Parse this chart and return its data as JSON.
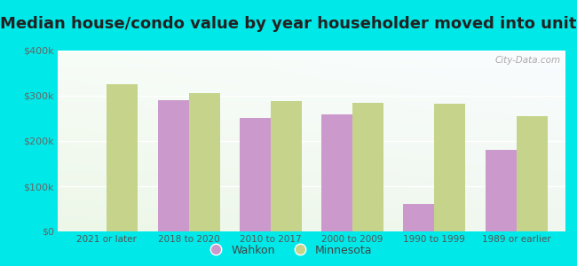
{
  "title": "Median house/condo value by year householder moved into unit",
  "categories": [
    "2021 or later",
    "2018 to 2020",
    "2010 to 2017",
    "2000 to 2009",
    "1990 to 1999",
    "1989 or earlier"
  ],
  "wahkon": [
    null,
    290000,
    250000,
    258000,
    60000,
    180000
  ],
  "minnesota": [
    325000,
    305000,
    288000,
    285000,
    282000,
    255000
  ],
  "wahkon_color": "#cc99cc",
  "minnesota_color": "#c5d48a",
  "background_outer": "#00e8e8",
  "ylim": [
    0,
    400000
  ],
  "yticks": [
    0,
    100000,
    200000,
    300000,
    400000
  ],
  "ytick_labels": [
    "$0",
    "$100k",
    "$200k",
    "$300k",
    "$400k"
  ],
  "legend_wahkon": "Wahkon",
  "legend_minnesota": "Minnesota",
  "bar_width": 0.38,
  "title_fontsize": 13,
  "title_color": "#222222"
}
